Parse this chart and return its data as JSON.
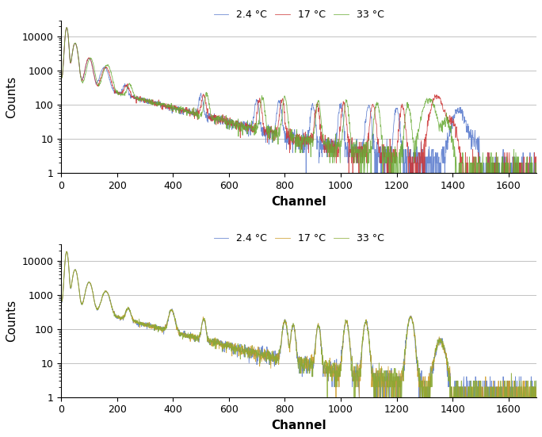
{
  "legend_labels": [
    "2.4 °C",
    "17 °C",
    "33 °C"
  ],
  "colors_top": [
    "#5577cc",
    "#cc3333",
    "#66aa33"
  ],
  "colors_bottom": [
    "#5577cc",
    "#cc9922",
    "#88aa33"
  ],
  "xlabel": "Channel",
  "ylabel": "Counts",
  "xlim": [
    0,
    1700
  ],
  "ylim_log": [
    1,
    30000
  ],
  "yticks": [
    1,
    10,
    100,
    1000,
    10000
  ],
  "xticks": [
    0,
    200,
    400,
    600,
    800,
    1000,
    1200,
    1400,
    1600
  ],
  "legend_fontsize": 9,
  "axis_fontsize": 11,
  "tick_fontsize": 9,
  "linewidth": 0.6,
  "background_color": "#ffffff"
}
